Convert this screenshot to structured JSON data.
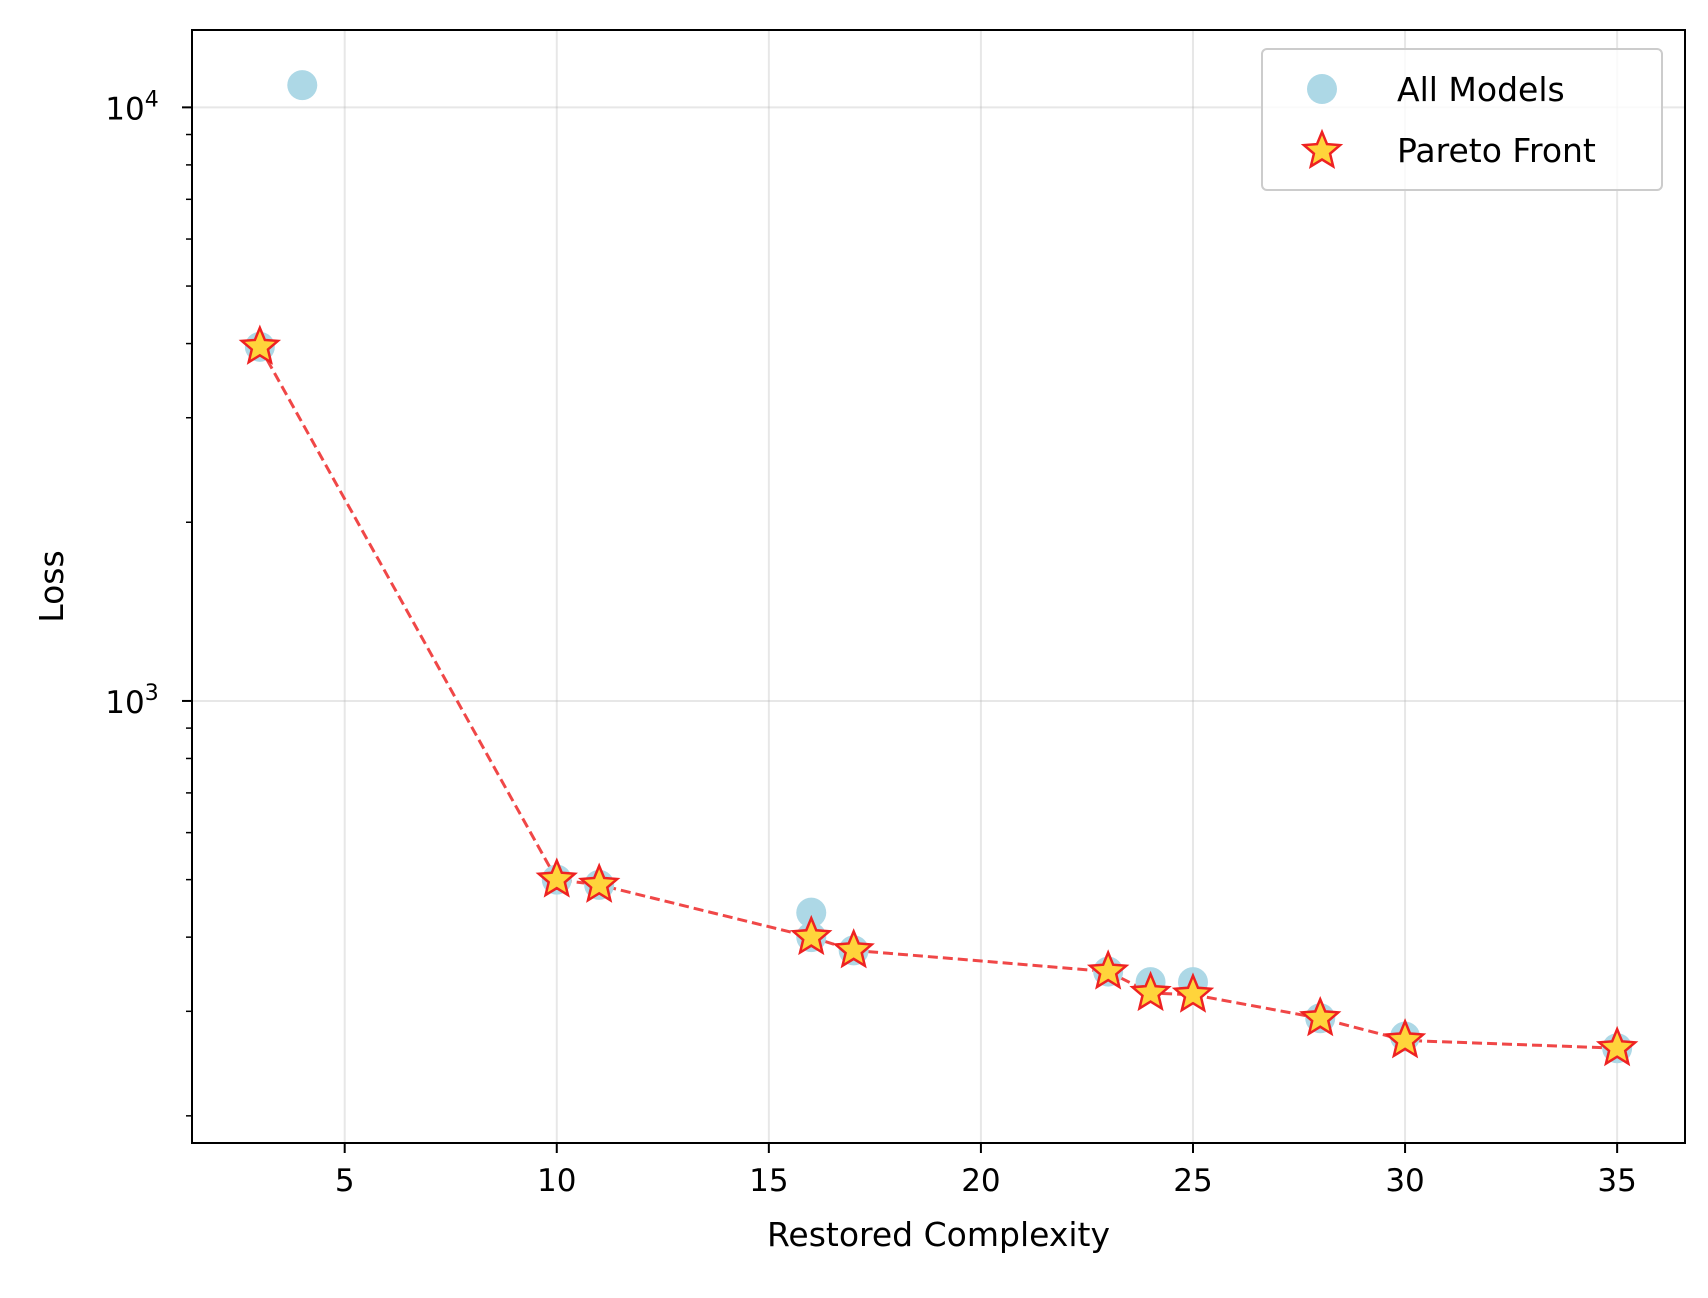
{
  "chart_data": {
    "type": "scatter",
    "title": "",
    "xlabel": "Restored Complexity",
    "ylabel": "Loss",
    "xlim": [
      1.4,
      36.6
    ],
    "ylim": [
      180,
      13500
    ],
    "yscale": "log",
    "grid": true,
    "legend_position": "top-right",
    "x_ticks": [
      5,
      10,
      15,
      20,
      25,
      30,
      35
    ],
    "y_ticks": [
      {
        "value": 1000,
        "base": "10",
        "exponent": "3"
      },
      {
        "value": 10000,
        "base": "10",
        "exponent": "4"
      }
    ],
    "series": [
      {
        "name": "All Models",
        "marker": "circle",
        "color": "#add8e6",
        "points": [
          {
            "x": 3,
            "y": 3950
          },
          {
            "x": 4,
            "y": 10900
          },
          {
            "x": 10,
            "y": 500
          },
          {
            "x": 11,
            "y": 490
          },
          {
            "x": 16,
            "y": 440
          },
          {
            "x": 16,
            "y": 400
          },
          {
            "x": 17,
            "y": 380
          },
          {
            "x": 23,
            "y": 350
          },
          {
            "x": 24,
            "y": 336
          },
          {
            "x": 25,
            "y": 336
          },
          {
            "x": 28,
            "y": 292
          },
          {
            "x": 30,
            "y": 272
          },
          {
            "x": 35,
            "y": 260
          }
        ]
      },
      {
        "name": "Pareto Front",
        "marker": "star",
        "color": "#ffd43b",
        "edge_color": "#ee2222",
        "line_color": "#ee3333",
        "line_style": "dashed",
        "points": [
          {
            "x": 3,
            "y": 3950
          },
          {
            "x": 10,
            "y": 500
          },
          {
            "x": 11,
            "y": 490
          },
          {
            "x": 16,
            "y": 400
          },
          {
            "x": 17,
            "y": 380
          },
          {
            "x": 23,
            "y": 350
          },
          {
            "x": 24,
            "y": 322
          },
          {
            "x": 25,
            "y": 320
          },
          {
            "x": 28,
            "y": 292
          },
          {
            "x": 30,
            "y": 268
          },
          {
            "x": 35,
            "y": 260
          }
        ]
      }
    ]
  }
}
